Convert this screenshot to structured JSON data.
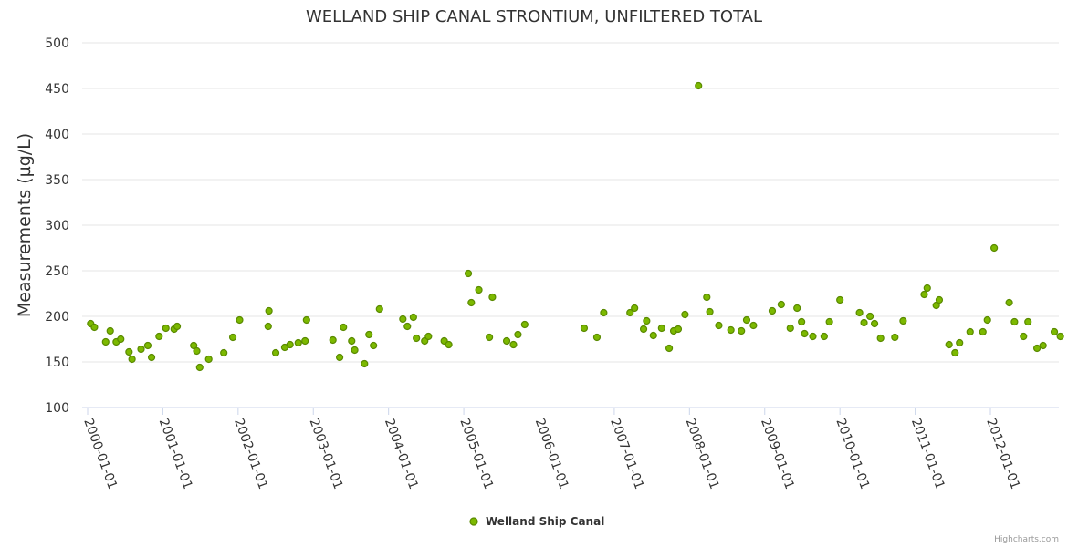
{
  "chart_data": {
    "type": "scatter",
    "title": "WELLAND SHIP CANAL STRONTIUM, UNFILTERED TOTAL",
    "xlabel": "",
    "ylabel": "Measurements (µg/L)",
    "ylim": [
      100,
      500
    ],
    "yticks": [
      100,
      150,
      200,
      250,
      300,
      350,
      400,
      450,
      500
    ],
    "xlim": [
      2000.0,
      2012.9
    ],
    "xticks": [
      {
        "label": "2000-01-01",
        "value": 2000
      },
      {
        "label": "2001-01-01",
        "value": 2001
      },
      {
        "label": "2002-01-01",
        "value": 2002
      },
      {
        "label": "2003-01-01",
        "value": 2003
      },
      {
        "label": "2004-01-01",
        "value": 2004
      },
      {
        "label": "2005-01-01",
        "value": 2005
      },
      {
        "label": "2006-01-01",
        "value": 2006
      },
      {
        "label": "2007-01-01",
        "value": 2007
      },
      {
        "label": "2008-01-01",
        "value": 2008
      },
      {
        "label": "2009-01-01",
        "value": 2009
      },
      {
        "label": "2010-01-01",
        "value": 2010
      },
      {
        "label": "2011-01-01",
        "value": 2011
      },
      {
        "label": "2012-01-01",
        "value": 2012
      }
    ],
    "legend_position": "bottom-center",
    "grid": true,
    "series": [
      {
        "name": "Welland Ship Canal",
        "color": "#7cb900",
        "border_color": "#5a8a00",
        "points": [
          [
            2000.04,
            192
          ],
          [
            2000.09,
            188
          ],
          [
            2000.24,
            172
          ],
          [
            2000.3,
            184
          ],
          [
            2000.38,
            172
          ],
          [
            2000.44,
            175
          ],
          [
            2000.55,
            161
          ],
          [
            2000.59,
            153
          ],
          [
            2000.71,
            164
          ],
          [
            2000.8,
            168
          ],
          [
            2000.85,
            155
          ],
          [
            2000.95,
            178
          ],
          [
            2001.04,
            187
          ],
          [
            2001.15,
            186
          ],
          [
            2001.19,
            189
          ],
          [
            2001.41,
            168
          ],
          [
            2001.45,
            162
          ],
          [
            2001.49,
            144
          ],
          [
            2001.61,
            153
          ],
          [
            2001.81,
            160
          ],
          [
            2001.93,
            177
          ],
          [
            2002.02,
            196
          ],
          [
            2002.41,
            206
          ],
          [
            2002.4,
            189
          ],
          [
            2002.5,
            160
          ],
          [
            2002.62,
            166
          ],
          [
            2002.69,
            169
          ],
          [
            2002.8,
            171
          ],
          [
            2002.89,
            173
          ],
          [
            2002.91,
            196
          ],
          [
            2003.26,
            174
          ],
          [
            2003.35,
            155
          ],
          [
            2003.4,
            188
          ],
          [
            2003.51,
            173
          ],
          [
            2003.55,
            163
          ],
          [
            2003.68,
            148
          ],
          [
            2003.74,
            180
          ],
          [
            2003.8,
            168
          ],
          [
            2003.88,
            208
          ],
          [
            2004.19,
            197
          ],
          [
            2004.25,
            189
          ],
          [
            2004.33,
            199
          ],
          [
            2004.37,
            176
          ],
          [
            2004.48,
            173
          ],
          [
            2004.53,
            178
          ],
          [
            2004.74,
            173
          ],
          [
            2004.8,
            169
          ],
          [
            2005.06,
            247
          ],
          [
            2005.1,
            215
          ],
          [
            2005.2,
            229
          ],
          [
            2005.34,
            177
          ],
          [
            2005.38,
            221
          ],
          [
            2005.57,
            173
          ],
          [
            2005.66,
            169
          ],
          [
            2005.72,
            180
          ],
          [
            2005.81,
            191
          ],
          [
            2006.6,
            187
          ],
          [
            2006.77,
            177
          ],
          [
            2006.86,
            204
          ],
          [
            2007.21,
            204
          ],
          [
            2007.27,
            209
          ],
          [
            2007.39,
            186
          ],
          [
            2007.43,
            195
          ],
          [
            2007.52,
            179
          ],
          [
            2007.63,
            187
          ],
          [
            2007.73,
            165
          ],
          [
            2007.79,
            184
          ],
          [
            2007.85,
            186
          ],
          [
            2007.94,
            202
          ],
          [
            2008.12,
            453
          ],
          [
            2008.23,
            221
          ],
          [
            2008.27,
            205
          ],
          [
            2008.39,
            190
          ],
          [
            2008.55,
            185
          ],
          [
            2008.69,
            184
          ],
          [
            2008.76,
            196
          ],
          [
            2008.85,
            190
          ],
          [
            2009.1,
            206
          ],
          [
            2009.22,
            213
          ],
          [
            2009.34,
            187
          ],
          [
            2009.43,
            209
          ],
          [
            2009.49,
            194
          ],
          [
            2009.53,
            181
          ],
          [
            2009.64,
            178
          ],
          [
            2009.79,
            178
          ],
          [
            2009.86,
            194
          ],
          [
            2010.0,
            218
          ],
          [
            2010.26,
            204
          ],
          [
            2010.32,
            193
          ],
          [
            2010.4,
            200
          ],
          [
            2010.46,
            192
          ],
          [
            2010.54,
            176
          ],
          [
            2010.73,
            177
          ],
          [
            2010.84,
            195
          ],
          [
            2011.12,
            224
          ],
          [
            2011.16,
            231
          ],
          [
            2011.28,
            212
          ],
          [
            2011.32,
            218
          ],
          [
            2011.45,
            169
          ],
          [
            2011.53,
            160
          ],
          [
            2011.59,
            171
          ],
          [
            2011.73,
            183
          ],
          [
            2011.9,
            183
          ],
          [
            2011.96,
            196
          ],
          [
            2012.05,
            275
          ],
          [
            2012.25,
            215
          ],
          [
            2012.32,
            194
          ],
          [
            2012.44,
            178
          ],
          [
            2012.5,
            194
          ],
          [
            2012.62,
            165
          ],
          [
            2012.7,
            168
          ],
          [
            2012.85,
            183
          ],
          [
            2012.93,
            178
          ]
        ]
      }
    ]
  },
  "credits": "Highcharts.com"
}
